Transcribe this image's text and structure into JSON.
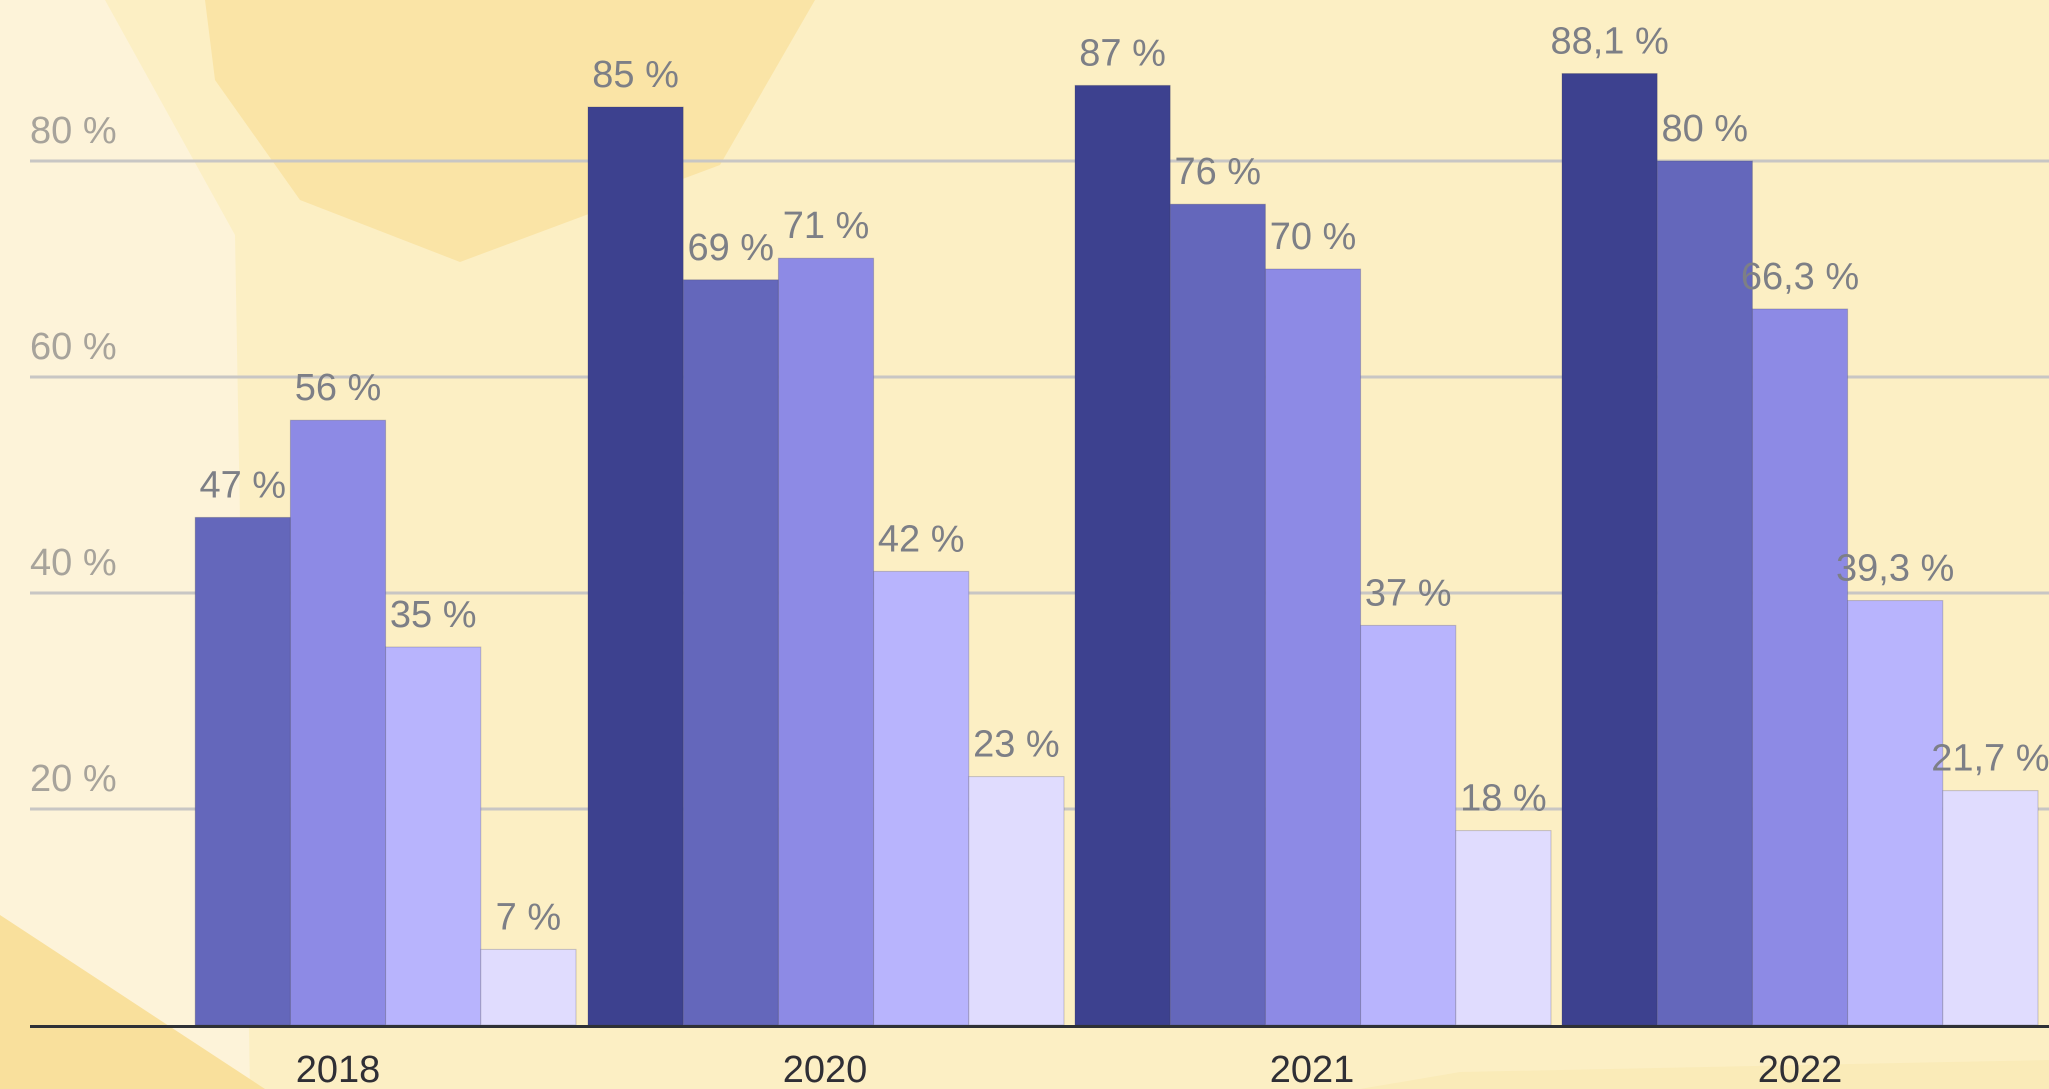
{
  "chart_data": {
    "type": "bar",
    "title": "",
    "xlabel": "",
    "ylabel": "",
    "ylim": [
      0,
      90
    ],
    "yticks": [
      20,
      40,
      60,
      80
    ],
    "ytick_labels": [
      "20 %",
      "40 %",
      "60 %",
      "80 %"
    ],
    "grid": true,
    "legend": "none",
    "categories": [
      "2018",
      "2020",
      "2021",
      "2022"
    ],
    "series": [
      {
        "values": [
          null,
          85,
          87,
          88.1
        ],
        "labels": [
          "",
          "85 %",
          "87 %",
          "88,1 %"
        ],
        "color": "#3d418f"
      },
      {
        "values": [
          47,
          69,
          76,
          80
        ],
        "labels": [
          "47 %",
          "69 %",
          "76 %",
          "80 %"
        ],
        "color": "#6467bb"
      },
      {
        "values": [
          56,
          71,
          70,
          66.3
        ],
        "labels": [
          "56 %",
          "71 %",
          "70 %",
          "66,3 %"
        ],
        "color": "#8d8ae5"
      },
      {
        "values": [
          35,
          42,
          37,
          39.3
        ],
        "labels": [
          "35 %",
          "42 %",
          "37 %",
          "39,3 %"
        ],
        "color": "#b8b4fd"
      },
      {
        "values": [
          7,
          23,
          18,
          21.7
        ],
        "labels": [
          "7 %",
          "23 %",
          "18 %",
          "21,7 %"
        ],
        "color": "#e0dcfe"
      }
    ]
  },
  "colors": {
    "background": "#fcefc4",
    "gridline": "#c8c6c4",
    "axis": "#2f3136",
    "tick_text": "#a7a39b",
    "data_label_text": "#7d7f86",
    "category_text": "#2f2f35"
  }
}
